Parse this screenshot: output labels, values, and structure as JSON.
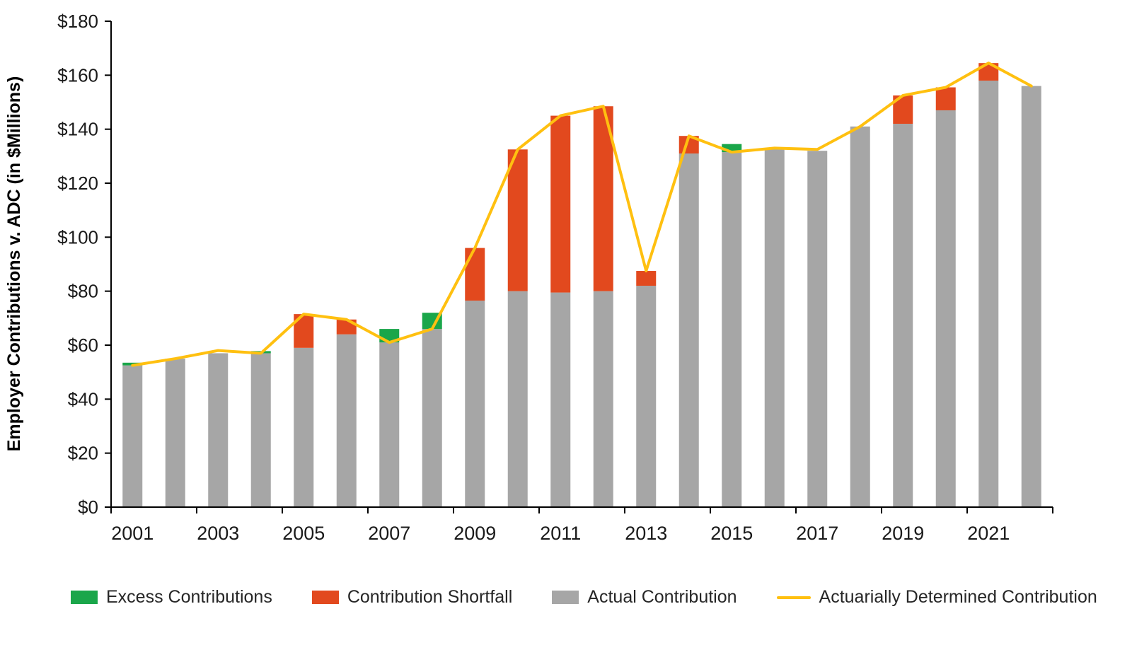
{
  "chart_data": {
    "type": "bar",
    "stacked": true,
    "overlay_line": true,
    "ylabel": "Employer Contributions v. ADC (in $Millions)",
    "ylim": [
      0,
      180
    ],
    "grid": false,
    "legend_position": "bottom",
    "categories": [
      "2001",
      "2002",
      "2003",
      "2004",
      "2005",
      "2006",
      "2007",
      "2008",
      "2009",
      "2010",
      "2011",
      "2012",
      "2013",
      "2014",
      "2015",
      "2016",
      "2017",
      "2018",
      "2019",
      "2020",
      "2021",
      "2022"
    ],
    "y_ticks": [
      {
        "value": 0,
        "label": "$0"
      },
      {
        "value": 20,
        "label": "$20"
      },
      {
        "value": 40,
        "label": "$40"
      },
      {
        "value": 60,
        "label": "$60"
      },
      {
        "value": 80,
        "label": "$80"
      },
      {
        "value": 100,
        "label": "$100"
      },
      {
        "value": 120,
        "label": "$120"
      },
      {
        "value": 140,
        "label": "$140"
      },
      {
        "value": 160,
        "label": "$160"
      },
      {
        "value": 180,
        "label": "$180"
      }
    ],
    "x_tick_labels": [
      "2001",
      "2003",
      "2005",
      "2007",
      "2009",
      "2011",
      "2013",
      "2015",
      "2017",
      "2019",
      "2021"
    ],
    "colors": {
      "excess": "#1AA64A",
      "shortfall": "#E2491E",
      "actual": "#A6A6A6",
      "adc_line": "#FFC010"
    },
    "series": [
      {
        "name": "Actual Contribution",
        "role": "actual",
        "type": "bar",
        "values": [
          53.5,
          55,
          57,
          57.8,
          59,
          64,
          66,
          72,
          76.5,
          80,
          79.5,
          80,
          82,
          131,
          134.5,
          132.5,
          132,
          141,
          142,
          147,
          158,
          156
        ]
      },
      {
        "name": "Excess Contributions",
        "role": "excess",
        "type": "bar-segment",
        "values": [
          1,
          0,
          0,
          0.8,
          0,
          0,
          5,
          6,
          0,
          0,
          0,
          0,
          0,
          0,
          3,
          0,
          0,
          0,
          0,
          0,
          0,
          0
        ]
      },
      {
        "name": "Contribution Shortfall",
        "role": "shortfall",
        "type": "bar-segment",
        "values": [
          0,
          0,
          0,
          0,
          12.5,
          5.5,
          0,
          0,
          19.5,
          52.5,
          65.5,
          68.5,
          5.5,
          6.5,
          0,
          0,
          0,
          0,
          10.5,
          8.5,
          6.5,
          0
        ]
      },
      {
        "name": "Actuarially Determined Contribution",
        "role": "adc",
        "type": "line",
        "values": [
          52.5,
          55,
          58,
          57,
          71.5,
          69.5,
          61,
          66,
          96,
          132.5,
          145,
          148.5,
          87.5,
          137.5,
          131.5,
          133,
          132.5,
          141,
          152.5,
          155.5,
          164.5,
          156
        ]
      }
    ]
  },
  "legend": [
    {
      "label": "Excess Contributions",
      "color": "#1AA64A",
      "marker": "box"
    },
    {
      "label": "Contribution Shortfall",
      "color": "#E2491E",
      "marker": "box"
    },
    {
      "label": "Actual Contribution",
      "color": "#A6A6A6",
      "marker": "box"
    },
    {
      "label": "Actuarially Determined Contribution",
      "color": "#FFC010",
      "marker": "line"
    }
  ]
}
